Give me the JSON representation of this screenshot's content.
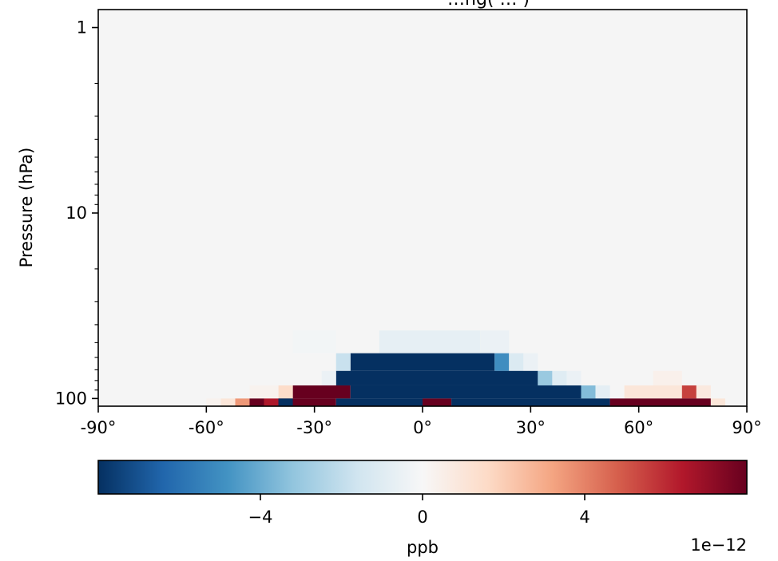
{
  "chart_data": {
    "type": "heatmap",
    "title": "…ng( … )",
    "xlabel": "",
    "ylabel": "Pressure (hPa)",
    "x_ticks": [
      "-90°",
      "-60°",
      "-30°",
      "0°",
      "30°",
      "60°",
      "90°"
    ],
    "y_ticks": [
      "1",
      "10",
      "100"
    ],
    "x_range": [
      -90,
      90
    ],
    "y_range": [
      110,
      0.8
    ],
    "y_scale": "log",
    "grid": false,
    "colormap": "RdBu_r",
    "colormap_stops": [
      "#053061",
      "#2166ac",
      "#4393c3",
      "#92c5de",
      "#d1e5f0",
      "#f7f7f7",
      "#fddbc7",
      "#f4a582",
      "#d6604d",
      "#b2182b",
      "#67001f"
    ],
    "background_color": "#f5f5f5",
    "colorbar": {
      "label": "ppb",
      "ticks": [
        "−4",
        "0",
        "4"
      ],
      "tick_values": [
        -4,
        0,
        4
      ],
      "range": [
        -8,
        8
      ],
      "scale_label": "1e−12",
      "orientation": "horizontal"
    },
    "cell_size": {
      "lon": 4,
      "lat_level_rows": 6
    },
    "row_levels": [
      43,
      57,
      71,
      85,
      100,
      110
    ],
    "units": "ppb (x1e-12)",
    "data": [
      {
        "lat": [
          -12,
          16
        ],
        "p": [
          43,
          57
        ],
        "v": -0.7
      },
      {
        "lat": [
          16,
          24
        ],
        "p": [
          43,
          57
        ],
        "v": -0.5
      },
      {
        "lat": [
          -36,
          -24
        ],
        "p": [
          43,
          57
        ],
        "v": -0.2
      },
      {
        "lat": [
          -20,
          20
        ],
        "p": [
          57,
          71
        ],
        "v": -8
      },
      {
        "lat": [
          -24,
          -20
        ],
        "p": [
          57,
          71
        ],
        "v": -1.8
      },
      {
        "lat": [
          20,
          24
        ],
        "p": [
          57,
          71
        ],
        "v": -5
      },
      {
        "lat": [
          24,
          28
        ],
        "p": [
          57,
          71
        ],
        "v": -1.2
      },
      {
        "lat": [
          28,
          32
        ],
        "p": [
          57,
          71
        ],
        "v": -0.5
      },
      {
        "lat": [
          -24,
          32
        ],
        "p": [
          71,
          85
        ],
        "v": -8
      },
      {
        "lat": [
          -28,
          -24
        ],
        "p": [
          71,
          85
        ],
        "v": -0.5
      },
      {
        "lat": [
          32,
          36
        ],
        "p": [
          71,
          85
        ],
        "v": -3
      },
      {
        "lat": [
          36,
          40
        ],
        "p": [
          71,
          85
        ],
        "v": -1
      },
      {
        "lat": [
          40,
          44
        ],
        "p": [
          71,
          85
        ],
        "v": -0.5
      },
      {
        "lat": [
          64,
          72
        ],
        "p": [
          71,
          85
        ],
        "v": 0.4
      },
      {
        "lat": [
          -36,
          -20
        ],
        "p": [
          85,
          100
        ],
        "v": 8
      },
      {
        "lat": [
          -20,
          44
        ],
        "p": [
          85,
          100
        ],
        "v": -8
      },
      {
        "lat": [
          44,
          48
        ],
        "p": [
          85,
          100
        ],
        "v": -3.5
      },
      {
        "lat": [
          48,
          52
        ],
        "p": [
          85,
          100
        ],
        "v": -0.8
      },
      {
        "lat": [
          56,
          72
        ],
        "p": [
          85,
          100
        ],
        "v": 1
      },
      {
        "lat": [
          72,
          76
        ],
        "p": [
          85,
          100
        ],
        "v": 5.5
      },
      {
        "lat": [
          76,
          80
        ],
        "p": [
          85,
          100
        ],
        "v": 0.8
      },
      {
        "lat": [
          -40,
          -36
        ],
        "p": [
          85,
          100
        ],
        "v": 1.5
      },
      {
        "lat": [
          -48,
          -40
        ],
        "p": [
          85,
          100
        ],
        "v": 0.3
      },
      {
        "lat": [
          -40,
          -24
        ],
        "p": [
          100,
          110
        ],
        "v": 8
      },
      {
        "lat": [
          -24,
          0
        ],
        "p": [
          100,
          110
        ],
        "v": -8
      },
      {
        "lat": [
          0,
          8
        ],
        "p": [
          100,
          110
        ],
        "v": 8
      },
      {
        "lat": [
          8,
          52
        ],
        "p": [
          100,
          110
        ],
        "v": -8
      },
      {
        "lat": [
          52,
          80
        ],
        "p": [
          100,
          110
        ],
        "v": 8
      },
      {
        "lat": [
          80,
          84
        ],
        "p": [
          100,
          110
        ],
        "v": 1
      },
      {
        "lat": [
          -52,
          -48
        ],
        "p": [
          100,
          110
        ],
        "v": 3.5
      },
      {
        "lat": [
          -48,
          -44
        ],
        "p": [
          100,
          110
        ],
        "v": 8
      },
      {
        "lat": [
          -44,
          -40
        ],
        "p": [
          100,
          110
        ],
        "v": 6.5
      },
      {
        "lat": [
          -40,
          -36
        ],
        "p": [
          100,
          110
        ],
        "v": -8
      },
      {
        "lat": [
          -56,
          -52
        ],
        "p": [
          100,
          110
        ],
        "v": 1
      },
      {
        "lat": [
          -60,
          -56
        ],
        "p": [
          100,
          110
        ],
        "v": 0.3
      }
    ]
  }
}
